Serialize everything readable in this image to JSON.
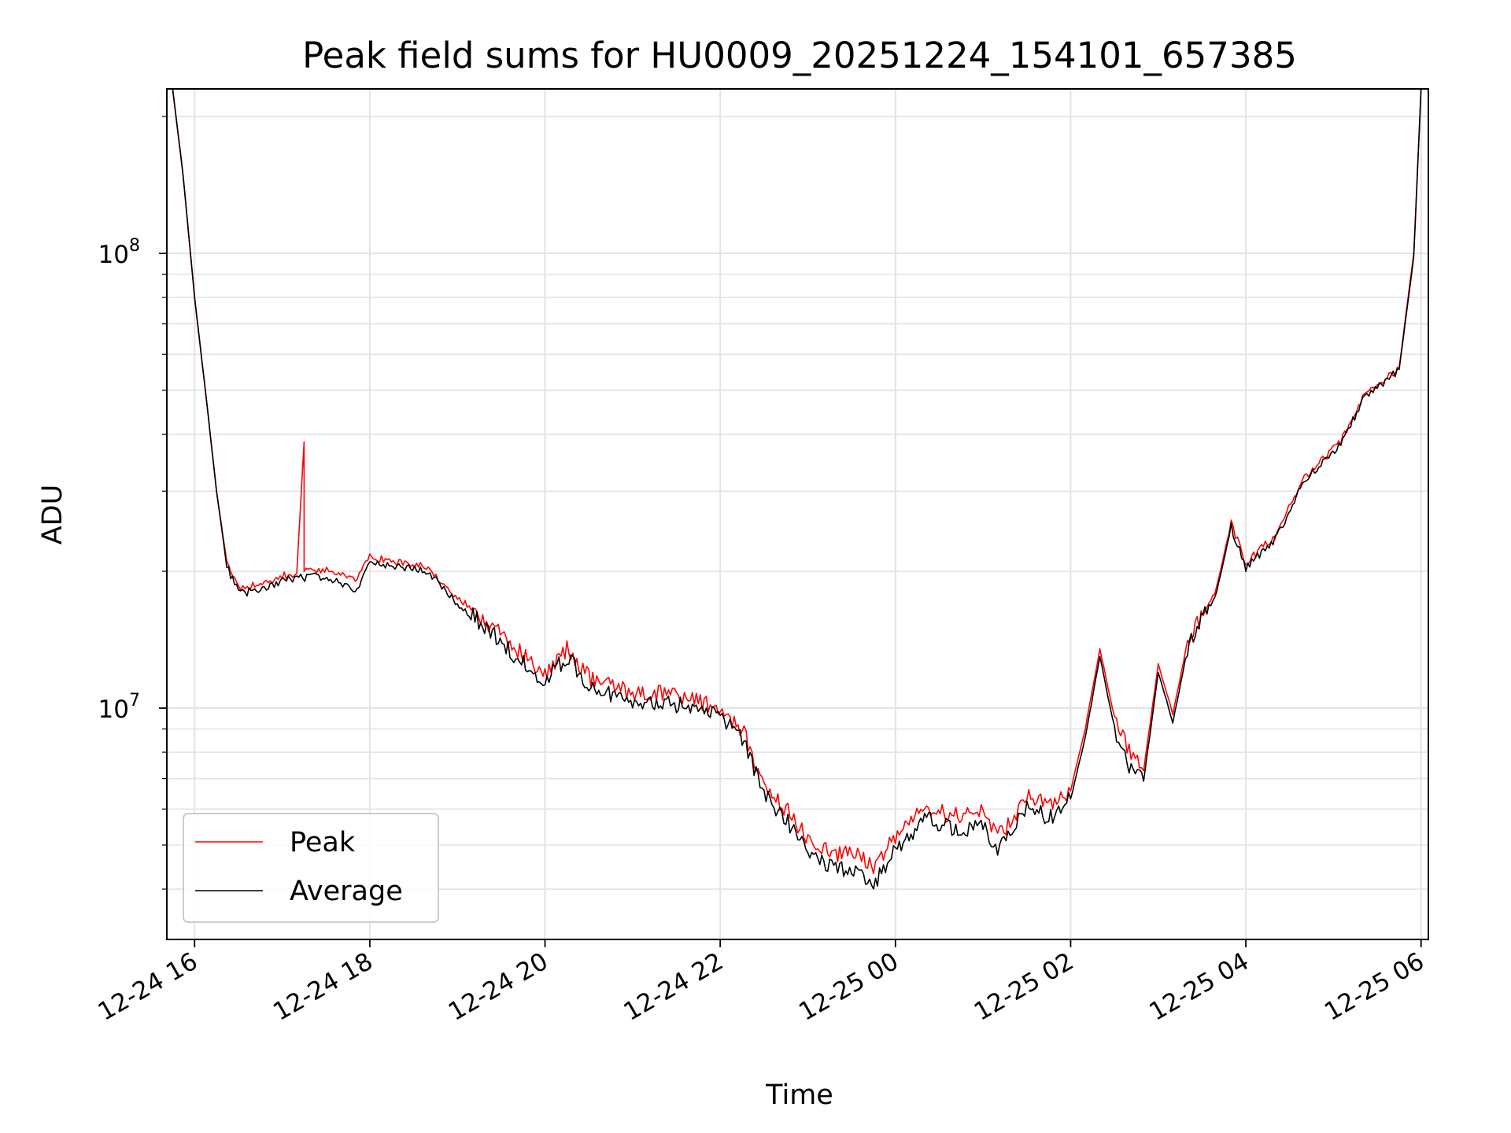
{
  "chart_data": {
    "type": "line",
    "title": "Peak field sums for HU0009_20251224_154101_657385",
    "xlabel": "Time",
    "ylabel": "ADU",
    "y_scale": "log",
    "ylim": [
      3100000.0,
      230000000.0
    ],
    "xlim": [
      "2025-12-24 15:41",
      "2025-12-25 06:05"
    ],
    "grid": true,
    "legend_position": "lower-left",
    "x_ticks": [
      "12-24 16",
      "12-24 18",
      "12-24 20",
      "12-24 22",
      "12-25 00",
      "12-25 02",
      "12-25 04",
      "12-25 06"
    ],
    "y_ticks": [
      {
        "base": "10",
        "exp": "7",
        "value": 10000000.0
      },
      {
        "base": "10",
        "exp": "8",
        "value": 100000000.0
      }
    ],
    "colors": {
      "Peak": "#ff0000",
      "Average": "#000000"
    },
    "series": [
      {
        "name": "Peak",
        "x": [
          "2025-12-24 15:45",
          "2025-12-24 15:52",
          "2025-12-24 16:00",
          "2025-12-24 16:08",
          "2025-12-24 16:15",
          "2025-12-24 16:22",
          "2025-12-24 16:30",
          "2025-12-24 16:36",
          "2025-12-24 16:45",
          "2025-12-24 17:00",
          "2025-12-24 17:10",
          "2025-12-24 17:15",
          "2025-12-24 17:15",
          "2025-12-24 17:25",
          "2025-12-24 17:40",
          "2025-12-24 17:50",
          "2025-12-24 18:00",
          "2025-12-24 18:20",
          "2025-12-24 18:40",
          "2025-12-24 19:00",
          "2025-12-24 19:20",
          "2025-12-24 19:40",
          "2025-12-24 20:00",
          "2025-12-24 20:15",
          "2025-12-24 20:30",
          "2025-12-24 21:00",
          "2025-12-24 21:30",
          "2025-12-24 22:00",
          "2025-12-24 22:15",
          "2025-12-24 22:30",
          "2025-12-24 22:45",
          "2025-12-24 23:00",
          "2025-12-24 23:15",
          "2025-12-24 23:30",
          "2025-12-24 23:45",
          "2025-12-25 00:00",
          "2025-12-25 00:20",
          "2025-12-25 00:40",
          "2025-12-25 01:00",
          "2025-12-25 01:10",
          "2025-12-25 01:20",
          "2025-12-25 01:30",
          "2025-12-25 01:45",
          "2025-12-25 02:00",
          "2025-12-25 02:10",
          "2025-12-25 02:20",
          "2025-12-25 02:30",
          "2025-12-25 02:40",
          "2025-12-25 02:50",
          "2025-12-25 03:00",
          "2025-12-25 03:10",
          "2025-12-25 03:20",
          "2025-12-25 03:40",
          "2025-12-25 03:50",
          "2025-12-25 04:00",
          "2025-12-25 04:20",
          "2025-12-25 04:40",
          "2025-12-25 04:50",
          "2025-12-25 05:05",
          "2025-12-25 05:20",
          "2025-12-25 05:30",
          "2025-12-25 05:45",
          "2025-12-25 05:55",
          "2025-12-25 06:00"
        ],
        "values": [
          230000000,
          150000000,
          80000000,
          48000000,
          30000000,
          21000000,
          18500000,
          18500000,
          18600000,
          19500000,
          19800000,
          38500000,
          20000000,
          20000000,
          20000000,
          19000000,
          21500000,
          21000000,
          20500000,
          17500000,
          15500000,
          13500000,
          12000000,
          13500000,
          11700000,
          10800000,
          10700000,
          10000000,
          9000000,
          6800000,
          6000000,
          5200000,
          4800000,
          4800000,
          4500000,
          5200000,
          6000000,
          5800000,
          5900000,
          5200000,
          5700000,
          6500000,
          6100000,
          6600000,
          9000000,
          13500000,
          9500000,
          8000000,
          7300000,
          12500000,
          9700000,
          14000000,
          18500000,
          25500000,
          20800000,
          24000000,
          32000000,
          34500000,
          38500000,
          48000000,
          51000000,
          56000000,
          100000000,
          230000000
        ]
      },
      {
        "name": "Average",
        "x": [
          "2025-12-24 15:45",
          "2025-12-24 15:52",
          "2025-12-24 16:00",
          "2025-12-24 16:08",
          "2025-12-24 16:15",
          "2025-12-24 16:22",
          "2025-12-24 16:30",
          "2025-12-24 16:36",
          "2025-12-24 16:45",
          "2025-12-24 17:00",
          "2025-12-24 17:10",
          "2025-12-24 17:25",
          "2025-12-24 17:40",
          "2025-12-24 17:50",
          "2025-12-24 18:00",
          "2025-12-24 18:20",
          "2025-12-24 18:40",
          "2025-12-24 19:00",
          "2025-12-24 19:20",
          "2025-12-24 19:40",
          "2025-12-24 20:00",
          "2025-12-24 20:15",
          "2025-12-24 20:30",
          "2025-12-24 21:00",
          "2025-12-24 21:30",
          "2025-12-24 22:00",
          "2025-12-24 22:15",
          "2025-12-24 22:30",
          "2025-12-24 22:45",
          "2025-12-24 23:00",
          "2025-12-24 23:15",
          "2025-12-24 23:30",
          "2025-12-24 23:45",
          "2025-12-25 00:00",
          "2025-12-25 00:20",
          "2025-12-25 00:40",
          "2025-12-25 01:00",
          "2025-12-25 01:10",
          "2025-12-25 01:20",
          "2025-12-25 01:30",
          "2025-12-25 01:45",
          "2025-12-25 02:00",
          "2025-12-25 02:10",
          "2025-12-25 02:20",
          "2025-12-25 02:30",
          "2025-12-25 02:40",
          "2025-12-25 02:50",
          "2025-12-25 03:00",
          "2025-12-25 03:10",
          "2025-12-25 03:20",
          "2025-12-25 03:40",
          "2025-12-25 03:50",
          "2025-12-25 04:00",
          "2025-12-25 04:20",
          "2025-12-25 04:40",
          "2025-12-25 04:50",
          "2025-12-25 05:05",
          "2025-12-25 05:20",
          "2025-12-25 05:30",
          "2025-12-25 05:45",
          "2025-12-25 05:55",
          "2025-12-25 06:00"
        ],
        "values": [
          230000000,
          150000000,
          80000000,
          48000000,
          30000000,
          20500000,
          18000000,
          18000000,
          18200000,
          19000000,
          19300000,
          19500000,
          18800000,
          18000000,
          21000000,
          20500000,
          20000000,
          17000000,
          15000000,
          13000000,
          11500000,
          13000000,
          11200000,
          10300000,
          10200000,
          9600000,
          8600000,
          6500000,
          5700000,
          4900000,
          4500000,
          4400000,
          4100000,
          4900000,
          5700000,
          5400000,
          5500000,
          4900000,
          5300000,
          6100000,
          5700000,
          6300000,
          8600000,
          13000000,
          9000000,
          7500000,
          6900000,
          12000000,
          9300000,
          13500000,
          18000000,
          25000000,
          20300000,
          23500000,
          31500000,
          34000000,
          38000000,
          47500000,
          50500000,
          55500000,
          98000000,
          230000000
        ]
      }
    ]
  }
}
